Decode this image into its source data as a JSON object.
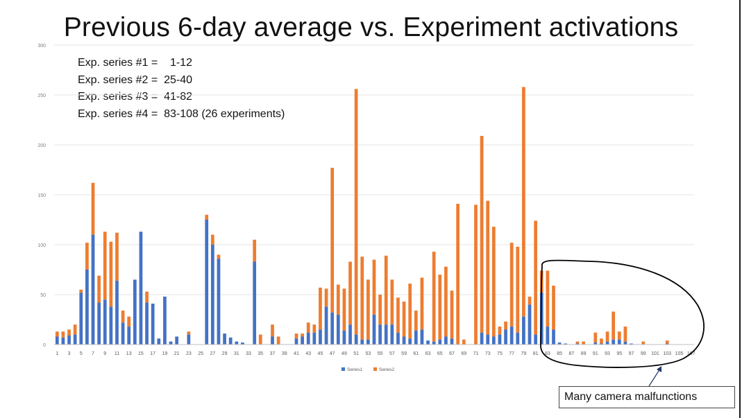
{
  "title": "Previous 6-day average vs. Experiment activations",
  "notes": [
    "Exp. series #1 =    1-12",
    "Exp. series #2 =  25-40",
    "Exp. series #3 =  41-82",
    "Exp. series #4 =  83-108 (26 experiments)"
  ],
  "callout": "Many camera malfunctions",
  "colors": {
    "series1": "#4472C4",
    "series2": "#ED7D31",
    "annotation": "#000000"
  },
  "chart_data": {
    "type": "bar",
    "stacked": true,
    "categories": [
      1,
      2,
      3,
      4,
      5,
      6,
      7,
      8,
      9,
      10,
      11,
      12,
      13,
      14,
      15,
      16,
      17,
      18,
      19,
      20,
      21,
      22,
      23,
      24,
      25,
      26,
      27,
      28,
      29,
      30,
      31,
      32,
      33,
      34,
      35,
      36,
      37,
      38,
      39,
      40,
      41,
      42,
      43,
      44,
      45,
      46,
      47,
      48,
      49,
      50,
      51,
      52,
      53,
      54,
      55,
      56,
      57,
      58,
      59,
      60,
      61,
      62,
      63,
      64,
      65,
      66,
      67,
      68,
      69,
      70,
      71,
      72,
      73,
      74,
      75,
      76,
      77,
      78,
      79,
      80,
      81,
      82,
      83,
      84,
      85,
      86,
      87,
      88,
      89,
      90,
      91,
      92,
      93,
      94,
      95,
      96,
      97,
      98,
      99,
      100,
      101,
      102,
      103,
      104,
      105,
      106,
      107
    ],
    "x_tick_labels": [
      "1",
      "3",
      "5",
      "7",
      "9",
      "11",
      "13",
      "15",
      "17",
      "19",
      "21",
      "23",
      "25",
      "27",
      "29",
      "31",
      "33",
      "35",
      "37",
      "39",
      "41",
      "43",
      "45",
      "47",
      "49",
      "51",
      "53",
      "55",
      "57",
      "59",
      "61",
      "63",
      "65",
      "67",
      "69",
      "71",
      "73",
      "75",
      "77",
      "79",
      "81",
      "83",
      "85",
      "87",
      "89",
      "91",
      "93",
      "95",
      "97",
      "99",
      "101",
      "103",
      "105",
      "107"
    ],
    "series": [
      {
        "name": "Series1",
        "values": [
          8,
          7,
          9,
          10,
          52,
          75,
          110,
          42,
          45,
          38,
          64,
          22,
          18,
          65,
          113,
          42,
          41,
          6,
          48,
          3,
          8,
          0,
          10,
          0,
          0,
          125,
          100,
          86,
          11,
          7,
          3,
          2,
          0,
          83,
          0,
          0,
          8,
          0,
          0,
          0,
          6,
          8,
          12,
          12,
          15,
          38,
          32,
          30,
          14,
          20,
          10,
          5,
          5,
          30,
          20,
          20,
          20,
          12,
          8,
          6,
          14,
          15,
          4,
          3,
          5,
          8,
          6,
          0,
          0,
          0,
          0,
          12,
          10,
          8,
          10,
          15,
          18,
          12,
          28,
          40,
          10,
          52,
          18,
          15,
          2,
          1,
          0,
          1,
          0,
          0,
          2,
          1,
          3,
          5,
          5,
          3,
          1,
          0,
          0,
          0,
          0,
          0,
          1,
          0,
          0,
          0,
          0
        ]
      },
      {
        "name": "Series2",
        "values": [
          5,
          6,
          6,
          10,
          3,
          27,
          52,
          27,
          68,
          65,
          48,
          12,
          10,
          0,
          0,
          11,
          0,
          0,
          0,
          0,
          0,
          0,
          3,
          0,
          0,
          5,
          10,
          4,
          0,
          0,
          0,
          0,
          0,
          22,
          10,
          0,
          12,
          8,
          0,
          0,
          5,
          3,
          10,
          8,
          42,
          18,
          145,
          30,
          42,
          63,
          246,
          83,
          60,
          55,
          30,
          69,
          45,
          35,
          35,
          55,
          20,
          52,
          0,
          90,
          65,
          70,
          48,
          141,
          5,
          0,
          140,
          197,
          134,
          110,
          8,
          8,
          84,
          86,
          230,
          8,
          114,
          22,
          56,
          44,
          0,
          0,
          0,
          2,
          3,
          0,
          10,
          5,
          10,
          28,
          8,
          15,
          0,
          0,
          3,
          0,
          0,
          0,
          3,
          0,
          0,
          0,
          0
        ]
      }
    ],
    "ylim": [
      0,
      300
    ],
    "yticks": [
      0,
      50,
      100,
      150,
      200,
      250,
      300
    ],
    "grid": true,
    "legend": "bottom"
  }
}
